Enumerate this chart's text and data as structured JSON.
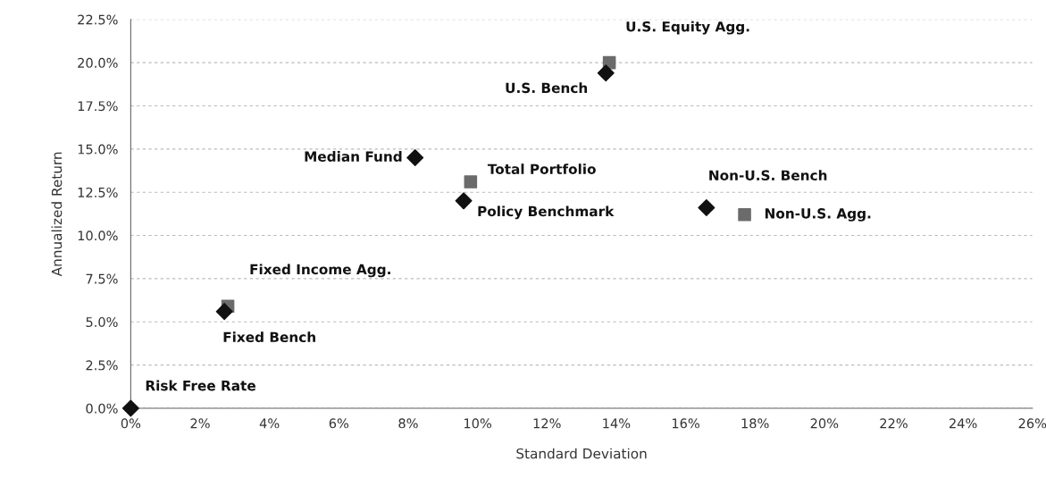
{
  "chart_data": {
    "type": "scatter",
    "xlabel": "Standard Deviation",
    "ylabel": "Annualized Return",
    "series": [
      {
        "color": "#111111",
        "marker": "diamond",
        "x": [
          0,
          2.7,
          8.2,
          9.6,
          13.7,
          16.6
        ],
        "values": [
          0,
          5.6,
          14.5,
          12.0,
          19.4,
          11.6
        ]
      },
      {
        "color": "#6b6b6b",
        "marker": "square",
        "x": [
          2.8,
          9.8,
          13.8,
          17.7
        ],
        "values": [
          5.9,
          13.1,
          20.0,
          11.2
        ]
      }
    ],
    "annotations": [
      {
        "text": "U.S. Equity Agg.",
        "x": 13.8,
        "y": 20.0
      },
      {
        "text": "U.S. Bench",
        "x": 13.7,
        "y": 19.4
      },
      {
        "text": "Median Fund",
        "x": 8.2,
        "y": 14.5
      },
      {
        "text": "Total Portfolio",
        "x": 9.8,
        "y": 13.1
      },
      {
        "text": "Policy Benchmark",
        "x": 9.6,
        "y": 12.0
      },
      {
        "text": "Non-U.S. Bench",
        "x": 16.6,
        "y": 11.6
      },
      {
        "text": "Non-U.S. Agg.",
        "x": 17.7,
        "y": 11.2
      },
      {
        "text": "Fixed Income Agg.",
        "x": 2.8,
        "y": 5.9
      },
      {
        "text": "Fixed Bench",
        "x": 2.7,
        "y": 5.6
      },
      {
        "text": "Risk Free Rate",
        "x": 0,
        "y": 0
      }
    ],
    "xlim": [
      0,
      26
    ],
    "xticks": [
      {
        "value": 0,
        "label": "0%"
      },
      {
        "value": 2,
        "label": "2%"
      },
      {
        "value": 4,
        "label": "4%"
      },
      {
        "value": 6,
        "label": "6%"
      },
      {
        "value": 8,
        "label": "8%"
      },
      {
        "value": 10,
        "label": "10%"
      },
      {
        "value": 12,
        "label": "12%"
      },
      {
        "value": 14,
        "label": "14%"
      },
      {
        "value": 16,
        "label": "16%"
      },
      {
        "value": 18,
        "label": "18%"
      },
      {
        "value": 20,
        "label": "20%"
      },
      {
        "value": 22,
        "label": "22%"
      },
      {
        "value": 24,
        "label": "24%"
      },
      {
        "value": 26,
        "label": "26%"
      }
    ],
    "ylim": [
      0,
      22.5
    ],
    "yticks": [
      {
        "value": 0,
        "label": "0.0%"
      },
      {
        "value": 2.5,
        "label": "2.5%"
      },
      {
        "value": 5,
        "label": "5.0%"
      },
      {
        "value": 7.5,
        "label": "7.5%"
      },
      {
        "value": 10,
        "label": "10.0%"
      },
      {
        "value": 12.5,
        "label": "12.5%"
      },
      {
        "value": 15,
        "label": "15.0%"
      },
      {
        "value": 17.5,
        "label": "17.5%"
      },
      {
        "value": 20,
        "label": "20.0%"
      },
      {
        "value": 22.5,
        "label": "22.5%"
      }
    ],
    "grid": "y",
    "legend": false
  }
}
